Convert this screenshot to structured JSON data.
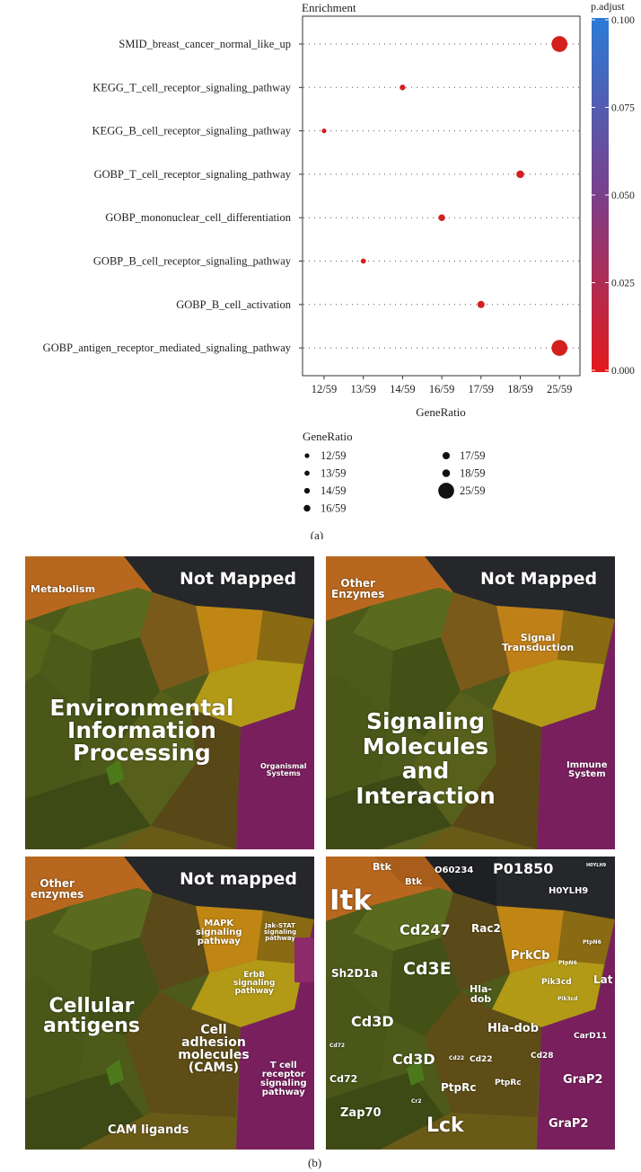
{
  "figure": {
    "caption_a": "(a)",
    "caption_b": "(b)"
  },
  "chart_data": {
    "type": "scatter",
    "title": "Enrichment",
    "xlabel": "GeneRatio",
    "x_tick_labels": [
      "12/59",
      "13/59",
      "14/59",
      "16/59",
      "17/59",
      "18/59",
      "25/59"
    ],
    "categories": [
      "SMID_breast_cancer_normal_like_up",
      "KEGG_T_cell_receptor_signaling_pathway",
      "KEGG_B_cell_receptor_signaling_pathway",
      "GOBP_T_cell_receptor_signaling_pathway",
      "GOBP_mononuclear_cell_differentiation",
      "GOBP_B_cell_receptor_signaling_pathway",
      "GOBP_B_cell_activation",
      "GOBP_antigen_receptor_mediated_signaling_pathway"
    ],
    "points": [
      {
        "term": "SMID_breast_cancer_normal_like_up",
        "gene_ratio": "25/59",
        "p_adjust": 0.0
      },
      {
        "term": "KEGG_T_cell_receptor_signaling_pathway",
        "gene_ratio": "14/59",
        "p_adjust": 0.0
      },
      {
        "term": "KEGG_B_cell_receptor_signaling_pathway",
        "gene_ratio": "12/59",
        "p_adjust": 0.0
      },
      {
        "term": "GOBP_T_cell_receptor_signaling_pathway",
        "gene_ratio": "18/59",
        "p_adjust": 0.0
      },
      {
        "term": "GOBP_mononuclear_cell_differentiation",
        "gene_ratio": "16/59",
        "p_adjust": 0.0
      },
      {
        "term": "GOBP_B_cell_receptor_signaling_pathway",
        "gene_ratio": "13/59",
        "p_adjust": 0.0
      },
      {
        "term": "GOBP_B_cell_activation",
        "gene_ratio": "17/59",
        "p_adjust": 0.0
      },
      {
        "term": "GOBP_antigen_receptor_mediated_signaling_pathway",
        "gene_ratio": "25/59",
        "p_adjust": 0.0
      }
    ],
    "colorbar": {
      "title": "p.adjust",
      "ticks": [
        "0.100",
        "0.075",
        "0.050",
        "0.025",
        "0.000"
      ],
      "range": [
        0.0,
        0.1
      ],
      "color_low": "#e31a1c",
      "color_high": "#2c7bd6"
    },
    "size_legend": {
      "title": "GeneRatio",
      "entries": [
        "12/59",
        "13/59",
        "14/59",
        "16/59",
        "17/59",
        "18/59",
        "25/59"
      ]
    },
    "point_color": "#d41f1f",
    "grid": "dotted horizontal"
  },
  "treemaps": {
    "colors": {
      "dark": "#25272b",
      "orange": "#b8681e",
      "gold": "#bf8614",
      "olive": "#4f5a1a",
      "magenta": "#7a1f5e",
      "yellow": "#b29a17"
    },
    "p1": {
      "not_mapped": "Not Mapped",
      "metabolism": "Metabolism",
      "main": [
        "Environmental",
        "Information",
        "Processing"
      ],
      "organismal": [
        "Organismal",
        "Systems"
      ]
    },
    "p2": {
      "not_mapped": "Not Mapped",
      "other": [
        "Other",
        "Enzymes"
      ],
      "signal": [
        "Signal",
        "Transduction"
      ],
      "main": [
        "Signaling",
        "Molecules",
        "and",
        "Interaction"
      ],
      "immune": [
        "Immune",
        "System"
      ]
    },
    "p3": {
      "not_mapped": "Not mapped",
      "other": [
        "Other",
        "enzymes"
      ],
      "mapk": [
        "MAPK",
        "signaling",
        "pathway"
      ],
      "jak": [
        "Jak-STAT",
        "signaling",
        "pathway"
      ],
      "erbb": [
        "ErbB",
        "signaling",
        "pathway"
      ],
      "cellular": [
        "Cellular",
        "antigens"
      ],
      "cam": [
        "Cell",
        "adhesion",
        "molecules",
        "(CAMs)"
      ],
      "tcell": [
        "T cell",
        "receptor",
        "signaling",
        "pathway"
      ],
      "ligands": "CAM ligands"
    },
    "p4": {
      "btk1": "Btk",
      "btk2": "Btk",
      "o60234": "O60234",
      "p01850": "P01850",
      "h0ylh9": "H0YLH9",
      "h0ylh9_small": "H0YLH9",
      "itk": "Itk",
      "cd247": "Cd247",
      "rac2": "Rac2",
      "prkcb": "PrkCb",
      "ptpn6a": "PtpN6",
      "ptpn6b": "PtpN6",
      "sh2d1a": "Sh2D1a",
      "cd3e": "Cd3E",
      "pik3cd1": "Pik3cd",
      "pik3cd2": "Pik3cd",
      "lat": "Lat",
      "hladob1": [
        "Hla-",
        "dob"
      ],
      "hladob2": "Hla-dob",
      "cd3d1": "Cd3D",
      "cd72a": "Cd72",
      "cd3d2": "Cd3D",
      "cd22a": "Cd22",
      "cd22b": "Cd22",
      "card11": "CarD11",
      "cd28": "Cd28",
      "cd72b": "Cd72",
      "grap2a": "GraP2",
      "ptprc1": "PtpRc",
      "ptprc2": "PtpRc",
      "cr2": "Cr2",
      "zap70": "Zap70",
      "lck": "Lck",
      "grap2b": "GraP2"
    }
  }
}
